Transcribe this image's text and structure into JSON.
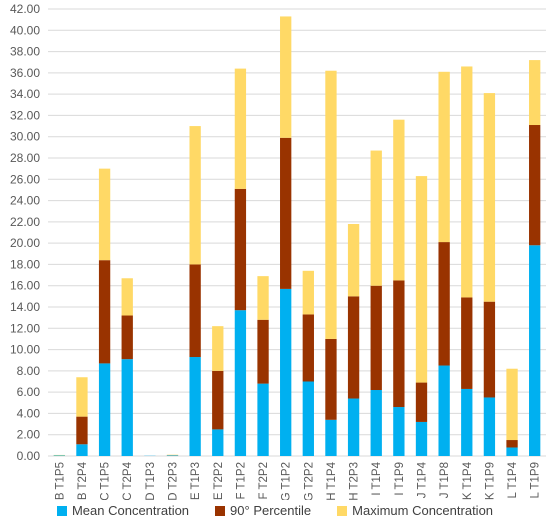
{
  "chart_data": {
    "type": "bar",
    "stacked": true,
    "categories": [
      "B T1P5",
      "B T2P4",
      "C T1P5",
      "C T2P4",
      "D T1P3",
      "D T2P3",
      "E T1P3",
      "E T2P2",
      "F T1P2",
      "F T2P2",
      "G T1P2",
      "G T2P2",
      "H T1P4",
      "H T2P3",
      "I T1P4",
      "I T1P9",
      "J T1P4",
      "J T1P8",
      "K T1P4",
      "K T1P9",
      "L T1P4",
      "L T1P9"
    ],
    "series": [
      {
        "name": "Mean Concentration",
        "color": "#00B0F0",
        "values": [
          0.05,
          1.1,
          8.7,
          9.1,
          0.02,
          0.05,
          9.3,
          2.5,
          13.7,
          6.8,
          15.7,
          7.0,
          3.4,
          5.4,
          6.2,
          4.6,
          3.2,
          8.5,
          6.3,
          5.5,
          0.8,
          19.8
        ]
      },
      {
        "name": "90° Percentile",
        "color": "#993300",
        "values": [
          0.0,
          2.6,
          9.7,
          4.1,
          0.0,
          0.02,
          8.7,
          5.5,
          11.4,
          6.0,
          14.2,
          6.3,
          7.6,
          9.6,
          9.8,
          11.9,
          3.7,
          11.6,
          8.6,
          9.0,
          0.7,
          11.3
        ]
      },
      {
        "name": "Maximum Concentration",
        "color": "#FFD966",
        "values": [
          0.05,
          3.7,
          8.6,
          3.5,
          0.0,
          0.05,
          13.0,
          4.2,
          11.3,
          4.1,
          11.4,
          4.1,
          25.2,
          6.8,
          12.7,
          15.1,
          19.4,
          16.0,
          21.7,
          19.6,
          6.7,
          6.1
        ]
      }
    ],
    "ylim": [
      0,
      42
    ],
    "yticks": [
      "0.00",
      "2.00",
      "4.00",
      "6.00",
      "8.00",
      "10.00",
      "12.00",
      "14.00",
      "16.00",
      "18.00",
      "20.00",
      "22.00",
      "24.00",
      "26.00",
      "28.00",
      "30.00",
      "32.00",
      "34.00",
      "36.00",
      "38.00",
      "40.00",
      "42.00"
    ],
    "ytick_step": 2,
    "grid": true,
    "legend_position": "bottom",
    "title": "",
    "xlabel": "",
    "ylabel": ""
  }
}
